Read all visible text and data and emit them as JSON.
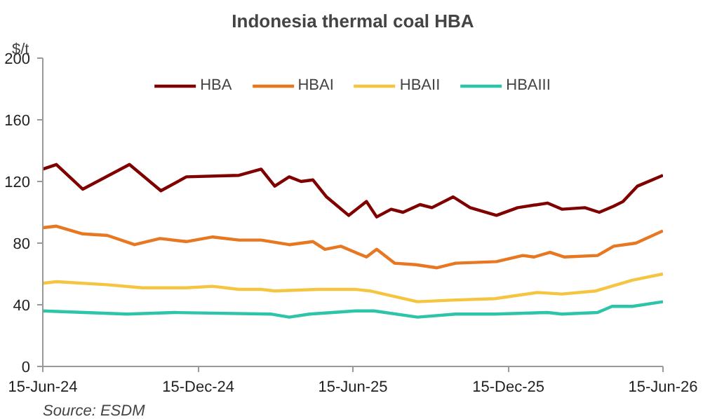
{
  "chart_data": {
    "type": "line",
    "title": "Indonesia thermal coal HBA",
    "ylabel": "$/t",
    "xlim": [
      "2024-06-15",
      "2026-06-15"
    ],
    "xticks": [
      {
        "value": "2024-06-15",
        "label": "15-Jun-24"
      },
      {
        "value": "2024-12-15",
        "label": "15-Dec-24"
      },
      {
        "value": "2025-06-15",
        "label": "15-Jun-25"
      },
      {
        "value": "2025-12-15",
        "label": "15-Dec-25"
      },
      {
        "value": "2026-06-15",
        "label": "15-Jun-26"
      }
    ],
    "ylim": [
      0,
      200
    ],
    "yticks": [
      0,
      40,
      80,
      120,
      160,
      200
    ],
    "grid": false,
    "legend": "top",
    "line_style": "solid",
    "marker": "none",
    "annotations": [
      "Source: ESDM"
    ],
    "series": [
      {
        "name": "HBA",
        "color": "#800000",
        "x": [
          "2024-06-15",
          "2024-07-01",
          "2024-08-01",
          "2024-09-25",
          "2024-11-01",
          "2024-12-01",
          "2025-02-01",
          "2025-02-27",
          "2025-03-15",
          "2025-04-01",
          "2025-04-15",
          "2025-04-29",
          "2025-05-15",
          "2025-06-10",
          "2025-07-01",
          "2025-07-13",
          "2025-07-30",
          "2025-08-13",
          "2025-09-02",
          "2025-09-16",
          "2025-10-11",
          "2025-10-31",
          "2025-12-01",
          "2025-12-26",
          "2026-01-30",
          "2026-02-16",
          "2026-03-15",
          "2026-04-01",
          "2026-04-18",
          "2026-04-29",
          "2026-05-16",
          "2026-06-15"
        ],
        "values": [
          128,
          131,
          115,
          131,
          114,
          123,
          124,
          128,
          117,
          123,
          120,
          121,
          110,
          98,
          107,
          97,
          102,
          100,
          105,
          103,
          110,
          103,
          98,
          103,
          106,
          102,
          103,
          100,
          104,
          107,
          117,
          124
        ]
      },
      {
        "name": "HBAI",
        "color": "#e87722",
        "x": [
          "2024-06-15",
          "2024-07-01",
          "2024-08-01",
          "2024-08-30",
          "2024-10-01",
          "2024-10-31",
          "2024-12-01",
          "2025-01-01",
          "2025-02-01",
          "2025-02-27",
          "2025-04-01",
          "2025-04-29",
          "2025-05-13",
          "2025-06-01",
          "2025-06-18",
          "2025-07-01",
          "2025-07-13",
          "2025-08-03",
          "2025-08-28",
          "2025-09-22",
          "2025-10-14",
          "2025-12-01",
          "2026-01-01",
          "2026-01-14",
          "2026-02-02",
          "2026-02-19",
          "2026-03-30",
          "2026-04-18",
          "2026-05-14",
          "2026-06-15"
        ],
        "values": [
          90,
          91,
          86,
          85,
          79,
          83,
          81,
          84,
          82,
          82,
          79,
          81,
          76,
          78,
          74,
          71,
          76,
          67,
          66,
          64,
          67,
          68,
          72,
          71,
          74,
          71,
          72,
          78,
          80,
          88
        ]
      },
      {
        "name": "HBAII",
        "color": "#f5c542",
        "x": [
          "2024-06-15",
          "2024-07-01",
          "2024-08-30",
          "2024-10-10",
          "2024-12-01",
          "2025-01-01",
          "2025-02-01",
          "2025-02-27",
          "2025-03-15",
          "2025-05-05",
          "2025-06-18",
          "2025-07-05",
          "2025-08-30",
          "2025-10-09",
          "2025-11-29",
          "2026-01-18",
          "2026-02-16",
          "2026-03-28",
          "2026-05-10",
          "2026-06-15"
        ],
        "values": [
          54,
          55,
          53,
          51,
          51,
          52,
          50,
          50,
          49,
          50,
          50,
          49,
          42,
          43,
          44,
          48,
          47,
          49,
          56,
          60
        ]
      },
      {
        "name": "HBAIII",
        "color": "#2ec4a9",
        "x": [
          "2024-06-15",
          "2024-09-22",
          "2024-11-17",
          "2025-03-10",
          "2025-04-01",
          "2025-04-25",
          "2025-06-18",
          "2025-07-10",
          "2025-08-30",
          "2025-10-14",
          "2025-11-29",
          "2026-01-30",
          "2026-02-16",
          "2026-03-30",
          "2026-04-16",
          "2026-05-10",
          "2026-06-15"
        ],
        "values": [
          36,
          34,
          35,
          34,
          32,
          34,
          36,
          36,
          32,
          34,
          34,
          35,
          34,
          35,
          39,
          39,
          42
        ]
      }
    ]
  }
}
